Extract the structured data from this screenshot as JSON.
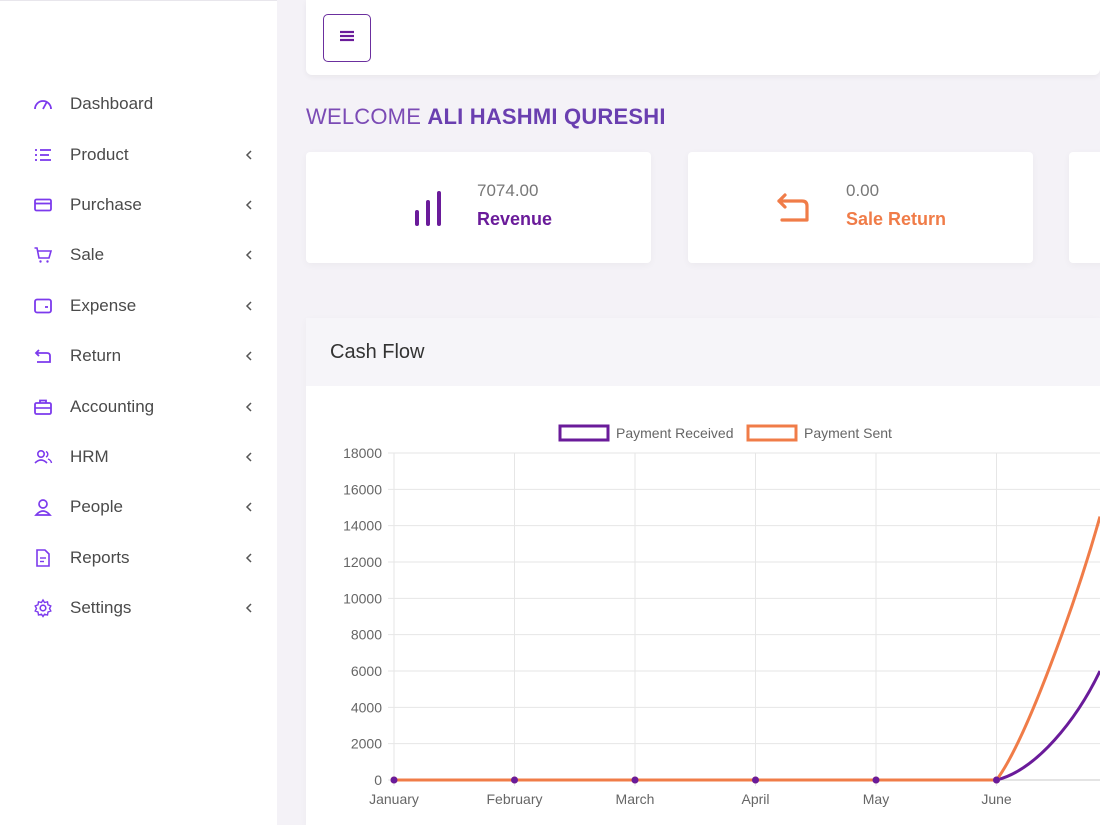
{
  "sidebar": {
    "items": [
      {
        "label": "Dashboard",
        "icon": "gauge-icon",
        "chevron": false
      },
      {
        "label": "Product",
        "icon": "list-icon",
        "chevron": true
      },
      {
        "label": "Purchase",
        "icon": "credit-card-icon",
        "chevron": true
      },
      {
        "label": "Sale",
        "icon": "cart-icon",
        "chevron": true
      },
      {
        "label": "Expense",
        "icon": "wallet-icon",
        "chevron": true
      },
      {
        "label": "Return",
        "icon": "return-arrow-icon",
        "chevron": true
      },
      {
        "label": "Accounting",
        "icon": "briefcase-icon",
        "chevron": true
      },
      {
        "label": "HRM",
        "icon": "users-icon",
        "chevron": true
      },
      {
        "label": "People",
        "icon": "user-icon",
        "chevron": true
      },
      {
        "label": "Reports",
        "icon": "document-icon",
        "chevron": true
      },
      {
        "label": "Settings",
        "icon": "gear-icon",
        "chevron": true
      }
    ]
  },
  "header": {
    "welcome_prefix": "WELCOME",
    "user_name": "ALI HASHMI QURESHI"
  },
  "cards": [
    {
      "value": "7074.00",
      "label": "Revenue",
      "icon": "bar-chart-icon",
      "color": "#6a1b9a"
    },
    {
      "value": "0.00",
      "label": "Sale Return",
      "icon": "return-arrow-icon",
      "color": "#f07c48"
    }
  ],
  "cash_flow": {
    "title": "Cash Flow"
  },
  "colors": {
    "primary": "#6a1b9a",
    "accent": "#f07c48",
    "sidebar_icon": "#7c3aed"
  },
  "chart_data": {
    "type": "line",
    "categories": [
      "January",
      "February",
      "March",
      "April",
      "May",
      "June"
    ],
    "series": [
      {
        "name": "Payment Received",
        "values": [
          0,
          0,
          0,
          0,
          0,
          0
        ],
        "color": "#6a1b9a"
      },
      {
        "name": "Payment Sent",
        "values": [
          0,
          0,
          0,
          0,
          0,
          0
        ],
        "color": "#f07c48"
      }
    ],
    "y_ticks": [
      0,
      2000,
      4000,
      6000,
      8000,
      10000,
      12000,
      14000,
      16000,
      18000
    ],
    "ylim": [
      0,
      18000
    ],
    "legend_position": "top",
    "grid": true
  }
}
